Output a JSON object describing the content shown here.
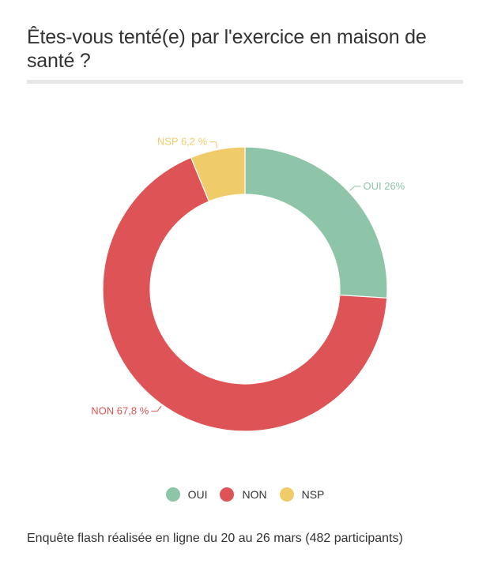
{
  "title": "Êtes-vous tenté(e) par l'exercice en maison de santé ?",
  "chart_data": {
    "type": "pie",
    "title": "Êtes-vous tenté(e) par l'exercice en maison de santé ?",
    "categories": [
      "OUI",
      "NON",
      "NSP"
    ],
    "values": [
      26,
      67.8,
      6.2
    ],
    "colors": [
      "#8ec4a8",
      "#de5456",
      "#efcb6a"
    ],
    "data_labels": [
      "OUI 26%",
      "NON 67,8 %",
      "NSP 6,2 %"
    ],
    "legend_position": "bottom-center"
  },
  "footnote": "Enquête flash réalisée en ligne du 20 au 26 mars (482 participants)"
}
